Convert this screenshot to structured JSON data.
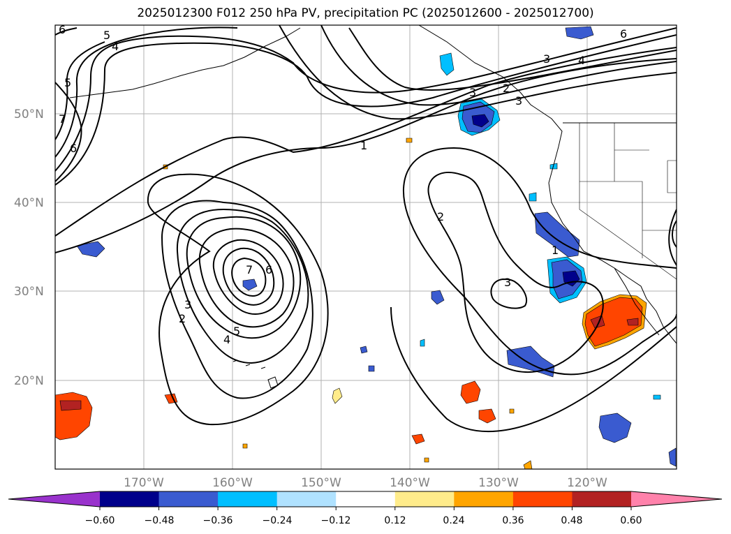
{
  "title": "2025012300 F012 250 hPa PV, precipitation PC (2025012600 - 2025012700)",
  "map": {
    "lon_ticks": [
      "170°W",
      "160°W",
      "150°W",
      "140°W",
      "130°W",
      "120°W"
    ],
    "lat_ticks": [
      "50°N",
      "40°N",
      "30°N",
      "20°N"
    ],
    "grid": true,
    "colors": {
      "land_outline": "#000000",
      "gridline": "#b0b0b0"
    }
  },
  "colorbar": {
    "ticks": [
      "−0.60",
      "−0.48",
      "−0.36",
      "−0.24",
      "−0.12",
      "0.12",
      "0.24",
      "0.36",
      "0.48",
      "0.60"
    ],
    "colors": [
      "#9932cc",
      "#00008b",
      "#3a5bd0",
      "#00bfff",
      "#b0e2ff",
      "#ffffff",
      "#ffec8b",
      "#ffa500",
      "#ff4500",
      "#b22222",
      "#ff82ab"
    ],
    "extend": "both"
  },
  "contour_labels": [
    "6",
    "5",
    "4",
    "5",
    "7",
    "6",
    "1",
    "2",
    "3",
    "7",
    "6",
    "3",
    "2",
    "5",
    "4",
    "2",
    "3",
    "1",
    "6",
    "4",
    "3",
    "3"
  ]
}
